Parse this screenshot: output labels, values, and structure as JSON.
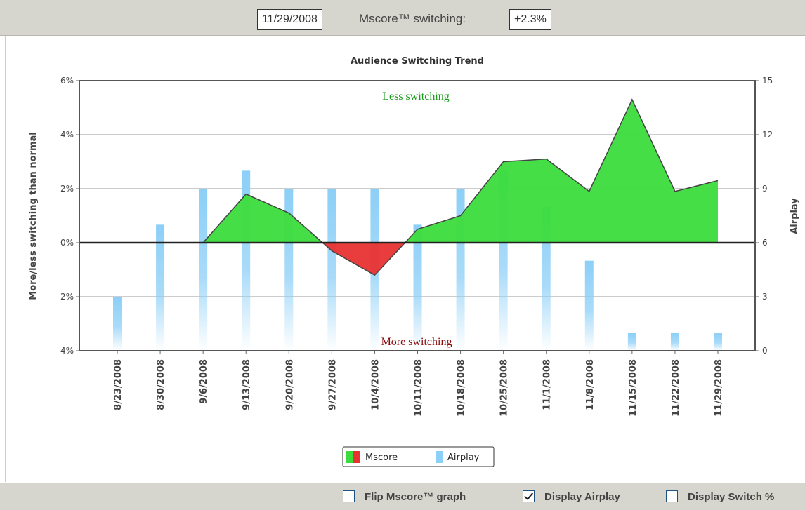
{
  "header": {
    "date": "11/29/2008",
    "metric_label": "Mscore™ switching:",
    "value_label": "+2.3%"
  },
  "chart_data": {
    "type": "area_bar",
    "title": "Audience Switching Trend",
    "y_label": "More/less switching than normal",
    "y2_label": "Airplay",
    "annotations": [
      "Less switching",
      "More switching"
    ],
    "categories": [
      "8/23/2008",
      "8/30/2008",
      "9/6/2008",
      "9/13/2008",
      "9/20/2008",
      "9/27/2008",
      "10/4/2008",
      "10/11/2008",
      "10/18/2008",
      "10/25/2008",
      "11/1/2008",
      "11/8/2008",
      "11/15/2008",
      "11/22/2008",
      "11/29/2008"
    ],
    "series": [
      {
        "name": "Mscore",
        "color": "#3cdc3c",
        "negative_color": "#e83232",
        "values": [
          0,
          0,
          0,
          1.8,
          1.1,
          -0.3,
          -1.2,
          0.5,
          1.0,
          3.0,
          3.1,
          1.9,
          5.3,
          1.9,
          2.3
        ]
      },
      {
        "name": "Airplay",
        "color": "#8ccff7",
        "axis": "y2",
        "values": [
          3,
          7,
          9,
          10,
          9,
          9,
          9,
          7,
          9,
          10,
          8,
          5,
          1,
          1,
          1
        ]
      }
    ],
    "ylim": [
      -4,
      6
    ],
    "yticks": [
      {
        "value": -4,
        "label": "-4%"
      },
      {
        "value": -2,
        "label": "-2%"
      },
      {
        "value": 0,
        "label": "0%"
      },
      {
        "value": 2,
        "label": "2%"
      },
      {
        "value": 4,
        "label": "4%"
      },
      {
        "value": 6,
        "label": "6%"
      }
    ],
    "y2lim": [
      0,
      15
    ],
    "y2ticks": [
      0,
      3,
      6,
      9,
      12,
      15
    ],
    "grid": true,
    "legend": "bottom"
  },
  "controls": [
    {
      "label": "Flip Mscore™ graph",
      "checked": false
    },
    {
      "label": "Display Airplay",
      "checked": true
    },
    {
      "label": "Display Switch %",
      "checked": false
    }
  ]
}
